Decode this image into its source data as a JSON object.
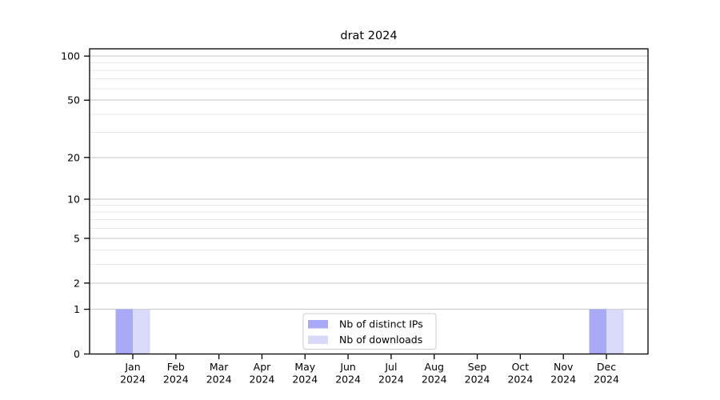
{
  "chart_data": {
    "type": "bar",
    "title": "drat 2024",
    "categories": [
      "Jan 2024",
      "Feb 2024",
      "Mar 2024",
      "Apr 2024",
      "May 2024",
      "Jun 2024",
      "Jul 2024",
      "Aug 2024",
      "Sep 2024",
      "Oct 2024",
      "Nov 2024",
      "Dec 2024"
    ],
    "series": [
      {
        "name": "Nb of distinct IPs",
        "color": "#a9a9f7",
        "values": [
          1,
          0,
          0,
          0,
          0,
          0,
          0,
          0,
          0,
          0,
          0,
          1
        ]
      },
      {
        "name": "Nb of downloads",
        "color": "#d9d9f9",
        "values": [
          1,
          0,
          0,
          0,
          0,
          0,
          0,
          0,
          0,
          0,
          0,
          1
        ]
      }
    ],
    "yscale": "log1p",
    "yticks": [
      0,
      1,
      2,
      5,
      10,
      20,
      50,
      100
    ],
    "minor_gridlines": [
      3,
      4,
      6,
      7,
      8,
      9,
      30,
      40,
      60,
      70,
      80,
      90
    ],
    "ylim": [
      0,
      112
    ],
    "xlabel": "",
    "ylabel": "",
    "grid": "horizontal",
    "legend": {
      "position": "bottom-center"
    }
  },
  "colors": {
    "axis": "#000000",
    "major_grid": "#c6c6c6",
    "minor_grid": "#eaeaea",
    "legend_border": "#cccccc"
  }
}
